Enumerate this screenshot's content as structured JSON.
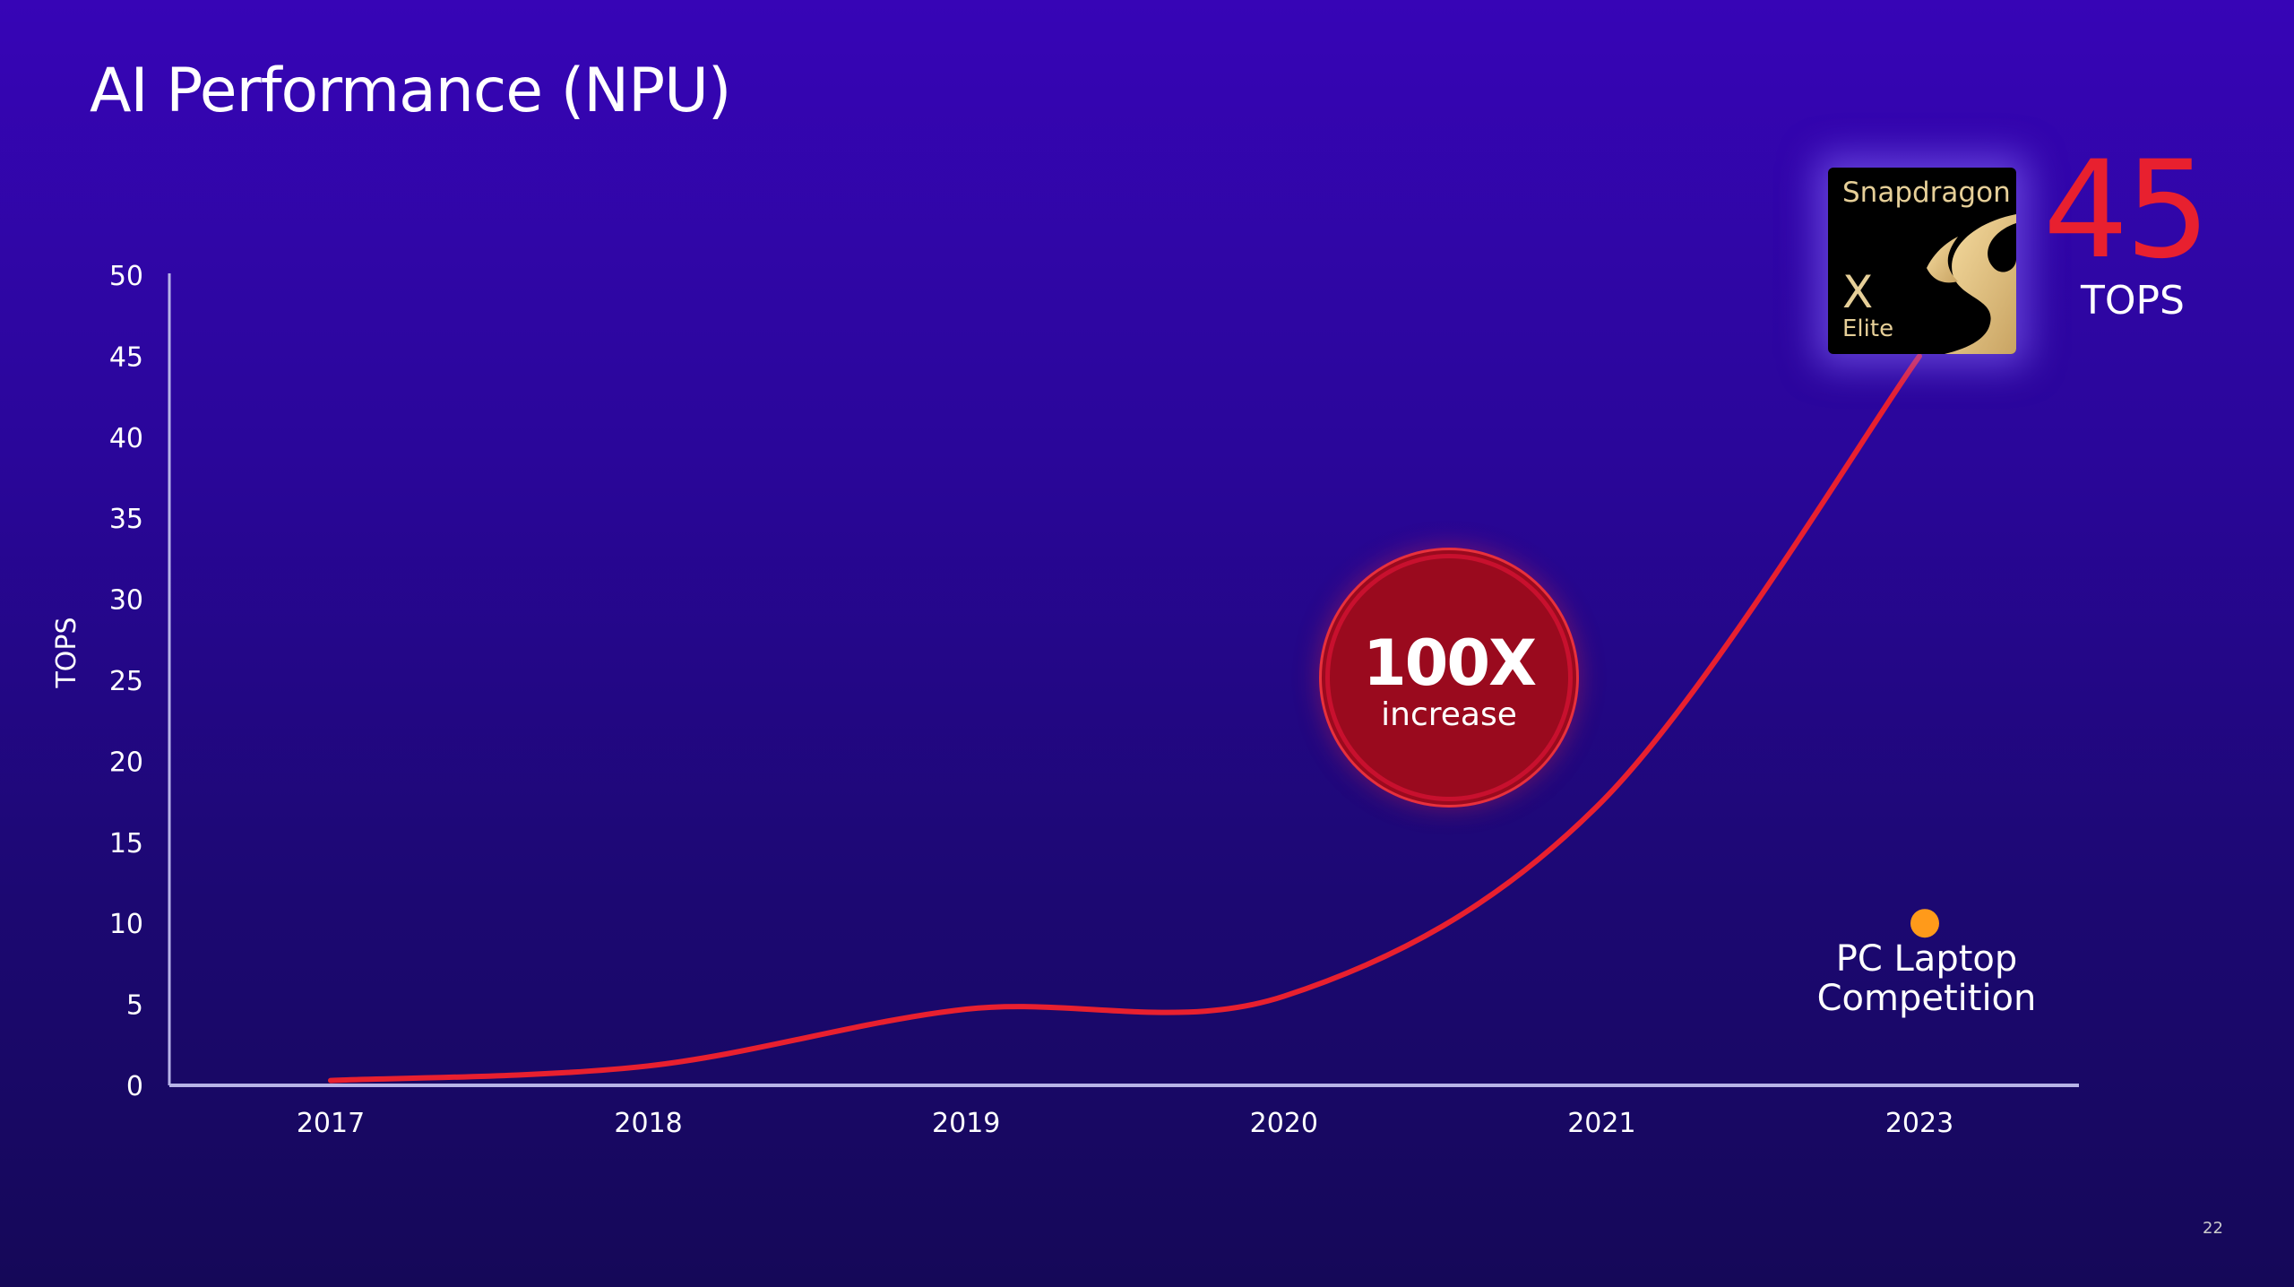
{
  "title": "AI Performance (NPU)",
  "page_number": "22",
  "chip": {
    "brand": "Snapdragon",
    "model": "X",
    "tier": "Elite"
  },
  "highlight": {
    "value": "45",
    "unit": "TOPS",
    "color": "#e8202f"
  },
  "badge": {
    "value": "100X",
    "label": "increase"
  },
  "competition_label": "PC Laptop Competition",
  "chart_data": {
    "type": "line",
    "title": "AI Performance (NPU)",
    "xlabel": "",
    "ylabel": "TOPS",
    "categories": [
      "2017",
      "2018",
      "2019",
      "2020",
      "2021",
      "2023"
    ],
    "yticks": [
      0,
      5,
      10,
      15,
      20,
      25,
      30,
      35,
      40,
      45,
      50
    ],
    "ylim": [
      0,
      50
    ],
    "grid": false,
    "series": [
      {
        "name": "Snapdragon X Elite",
        "values": [
          0.3,
          1.2,
          4.7,
          5.5,
          17.5,
          45
        ],
        "color": "#e8202f",
        "smooth": true
      },
      {
        "name": "PC Laptop Competition",
        "type": "point",
        "category": "2023",
        "value": 10,
        "color": "#ff9a1a"
      }
    ]
  }
}
